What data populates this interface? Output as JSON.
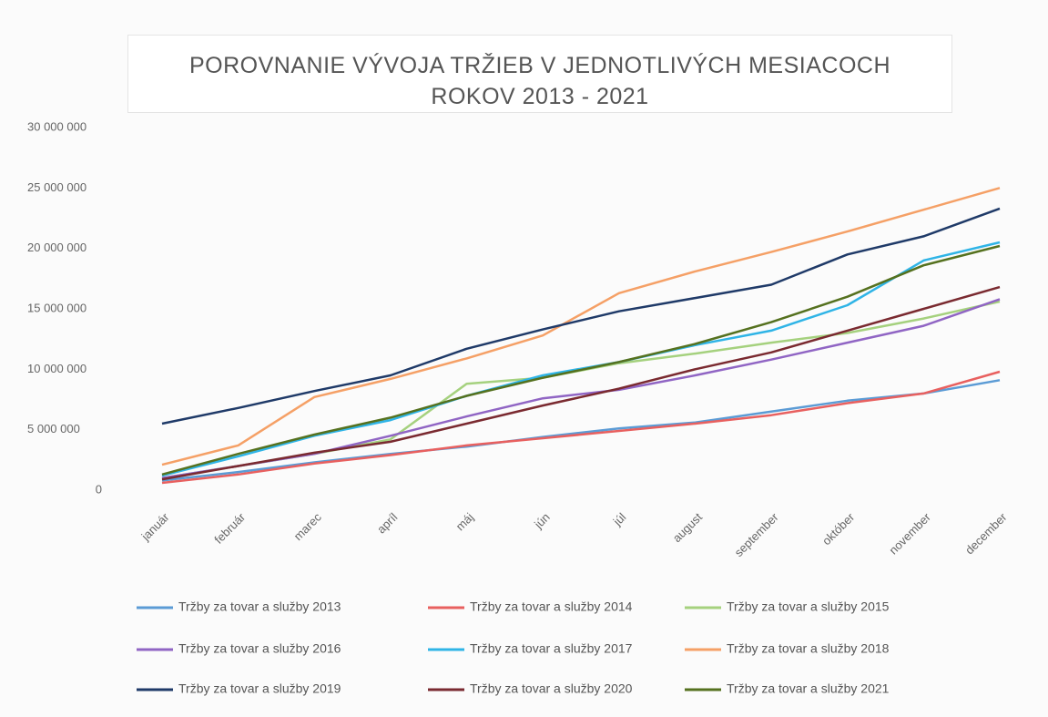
{
  "chart_data": {
    "type": "line",
    "title": "POROVNANIE VÝVOJA TRŽIEB V JEDNOTLIVÝCH MESIACOCH ROKOV 2013 - 2021",
    "categories": [
      "január",
      "február",
      "marec",
      "apríl",
      "máj",
      "jún",
      "júl",
      "august",
      "september",
      "október",
      "november",
      "december"
    ],
    "ylim": [
      0,
      30000000
    ],
    "yticks": [
      0,
      {
        "value": 5000000,
        "label": "5 000 000"
      },
      {
        "value": 10000000,
        "label": "10 000 000"
      },
      {
        "value": 15000000,
        "label": "15 000 000"
      },
      {
        "value": 20000000,
        "label": "20 000 000"
      },
      {
        "value": 25000000,
        "label": "25 000 000"
      },
      {
        "value": 30000000,
        "label": "30 000 000"
      }
    ],
    "grid": false,
    "legend": "bottom",
    "series": [
      {
        "name": "Tržby za tovar a služby 2013",
        "color": "#5b9bd5",
        "values": [
          800000,
          1500000,
          2300000,
          3000000,
          3600000,
          4400000,
          5100000,
          5600000,
          6500000,
          7400000,
          8000000,
          9100000
        ]
      },
      {
        "name": "Tržby za tovar a služby 2014",
        "color": "#e8605f",
        "values": [
          600000,
          1300000,
          2200000,
          2900000,
          3700000,
          4300000,
          4900000,
          5500000,
          6200000,
          7200000,
          8000000,
          9800000
        ]
      },
      {
        "name": "Tržby za tovar a služby 2015",
        "color": "#a5d17e",
        "values": [
          1000000,
          2000000,
          3000000,
          4200000,
          8800000,
          9300000,
          10500000,
          11300000,
          12200000,
          13000000,
          14200000,
          15600000
        ]
      },
      {
        "name": "Tržby za tovar a služby 2016",
        "color": "#9065c4",
        "values": [
          1000000,
          2000000,
          3000000,
          4500000,
          6100000,
          7600000,
          8300000,
          9500000,
          10800000,
          12200000,
          13600000,
          15800000
        ]
      },
      {
        "name": "Tržby za tovar a služby 2017",
        "color": "#2fb4e6",
        "values": [
          1200000,
          2800000,
          4500000,
          5800000,
          7800000,
          9500000,
          10600000,
          12000000,
          13200000,
          15300000,
          19000000,
          20500000
        ]
      },
      {
        "name": "Tržby za tovar a služby 2018",
        "color": "#f5a066",
        "values": [
          2100000,
          3700000,
          7700000,
          9200000,
          10900000,
          12800000,
          16300000,
          18100000,
          19700000,
          21400000,
          23200000,
          25000000
        ]
      },
      {
        "name": "Tržby za tovar a služby 2019",
        "color": "#1f3a68",
        "values": [
          5500000,
          6800000,
          8200000,
          9500000,
          11700000,
          13300000,
          14800000,
          15900000,
          17000000,
          19500000,
          21000000,
          23300000
        ]
      },
      {
        "name": "Tržby za tovar a služby 2020",
        "color": "#7a2a30",
        "values": [
          900000,
          2000000,
          3100000,
          4000000,
          5500000,
          7000000,
          8400000,
          10000000,
          11400000,
          13200000,
          15000000,
          16800000
        ]
      },
      {
        "name": "Tržby za tovar a služby 2021",
        "color": "#55711f",
        "values": [
          1300000,
          3000000,
          4600000,
          6000000,
          7800000,
          9300000,
          10600000,
          12100000,
          13900000,
          16000000,
          18600000,
          20200000
        ]
      }
    ]
  }
}
